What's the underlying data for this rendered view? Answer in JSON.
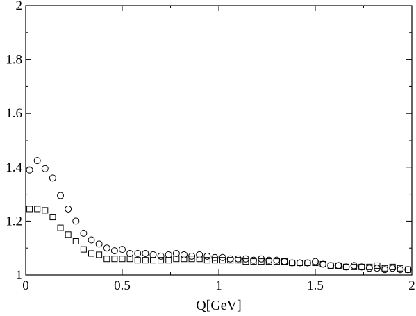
{
  "chart_data": {
    "type": "scatter",
    "title": "",
    "xlabel": "Q[GeV]",
    "ylabel": "",
    "xlim": [
      0,
      2
    ],
    "ylim": [
      1,
      2
    ],
    "x_ticks": [
      0,
      0.5,
      1,
      1.5,
      2
    ],
    "x_tick_labels": [
      "0",
      "0.5",
      "1",
      "1.5",
      "2"
    ],
    "y_ticks": [
      1,
      1.2,
      1.4,
      1.6,
      1.8,
      2
    ],
    "y_tick_labels": [
      "1",
      "1.2",
      "1.4",
      "1.6",
      "1.8",
      "2"
    ],
    "grid": false,
    "legend": "none",
    "series": [
      {
        "marker": "circle",
        "color": "#000000",
        "points": [
          [
            0.02,
            1.39
          ],
          [
            0.06,
            1.425
          ],
          [
            0.1,
            1.395
          ],
          [
            0.14,
            1.36
          ],
          [
            0.18,
            1.295
          ],
          [
            0.22,
            1.245
          ],
          [
            0.26,
            1.2
          ],
          [
            0.3,
            1.155
          ],
          [
            0.34,
            1.13
          ],
          [
            0.38,
            1.115
          ],
          [
            0.42,
            1.1
          ],
          [
            0.46,
            1.09
          ],
          [
            0.5,
            1.095
          ],
          [
            0.54,
            1.08
          ],
          [
            0.58,
            1.08
          ],
          [
            0.62,
            1.08
          ],
          [
            0.66,
            1.075
          ],
          [
            0.7,
            1.07
          ],
          [
            0.74,
            1.075
          ],
          [
            0.78,
            1.08
          ],
          [
            0.82,
            1.075
          ],
          [
            0.86,
            1.07
          ],
          [
            0.9,
            1.075
          ],
          [
            0.94,
            1.07
          ],
          [
            0.98,
            1.065
          ],
          [
            1.02,
            1.065
          ],
          [
            1.06,
            1.06
          ],
          [
            1.1,
            1.06
          ],
          [
            1.14,
            1.06
          ],
          [
            1.18,
            1.055
          ],
          [
            1.22,
            1.06
          ],
          [
            1.26,
            1.055
          ],
          [
            1.3,
            1.055
          ],
          [
            1.34,
            1.05
          ],
          [
            1.38,
            1.045
          ],
          [
            1.42,
            1.045
          ],
          [
            1.46,
            1.045
          ],
          [
            1.5,
            1.05
          ],
          [
            1.54,
            1.04
          ],
          [
            1.58,
            1.035
          ],
          [
            1.62,
            1.035
          ],
          [
            1.66,
            1.03
          ],
          [
            1.7,
            1.035
          ],
          [
            1.74,
            1.03
          ],
          [
            1.78,
            1.025
          ],
          [
            1.82,
            1.025
          ],
          [
            1.86,
            1.02
          ],
          [
            1.9,
            1.025
          ],
          [
            1.94,
            1.02
          ],
          [
            1.98,
            1.02
          ]
        ]
      },
      {
        "marker": "square",
        "color": "#000000",
        "points": [
          [
            0.02,
            1.245
          ],
          [
            0.06,
            1.245
          ],
          [
            0.1,
            1.24
          ],
          [
            0.14,
            1.215
          ],
          [
            0.18,
            1.175
          ],
          [
            0.22,
            1.15
          ],
          [
            0.26,
            1.125
          ],
          [
            0.3,
            1.095
          ],
          [
            0.34,
            1.08
          ],
          [
            0.38,
            1.075
          ],
          [
            0.42,
            1.06
          ],
          [
            0.46,
            1.06
          ],
          [
            0.5,
            1.06
          ],
          [
            0.54,
            1.06
          ],
          [
            0.58,
            1.055
          ],
          [
            0.62,
            1.055
          ],
          [
            0.66,
            1.055
          ],
          [
            0.7,
            1.055
          ],
          [
            0.74,
            1.055
          ],
          [
            0.78,
            1.06
          ],
          [
            0.82,
            1.06
          ],
          [
            0.86,
            1.06
          ],
          [
            0.9,
            1.06
          ],
          [
            0.94,
            1.055
          ],
          [
            0.98,
            1.055
          ],
          [
            1.02,
            1.055
          ],
          [
            1.06,
            1.055
          ],
          [
            1.1,
            1.055
          ],
          [
            1.14,
            1.05
          ],
          [
            1.18,
            1.05
          ],
          [
            1.22,
            1.05
          ],
          [
            1.26,
            1.05
          ],
          [
            1.3,
            1.05
          ],
          [
            1.34,
            1.05
          ],
          [
            1.38,
            1.045
          ],
          [
            1.42,
            1.045
          ],
          [
            1.46,
            1.045
          ],
          [
            1.5,
            1.045
          ],
          [
            1.54,
            1.04
          ],
          [
            1.58,
            1.035
          ],
          [
            1.62,
            1.035
          ],
          [
            1.66,
            1.03
          ],
          [
            1.7,
            1.03
          ],
          [
            1.74,
            1.03
          ],
          [
            1.78,
            1.03
          ],
          [
            1.82,
            1.035
          ],
          [
            1.86,
            1.025
          ],
          [
            1.9,
            1.03
          ],
          [
            1.94,
            1.025
          ],
          [
            1.98,
            1.02
          ]
        ]
      }
    ]
  }
}
